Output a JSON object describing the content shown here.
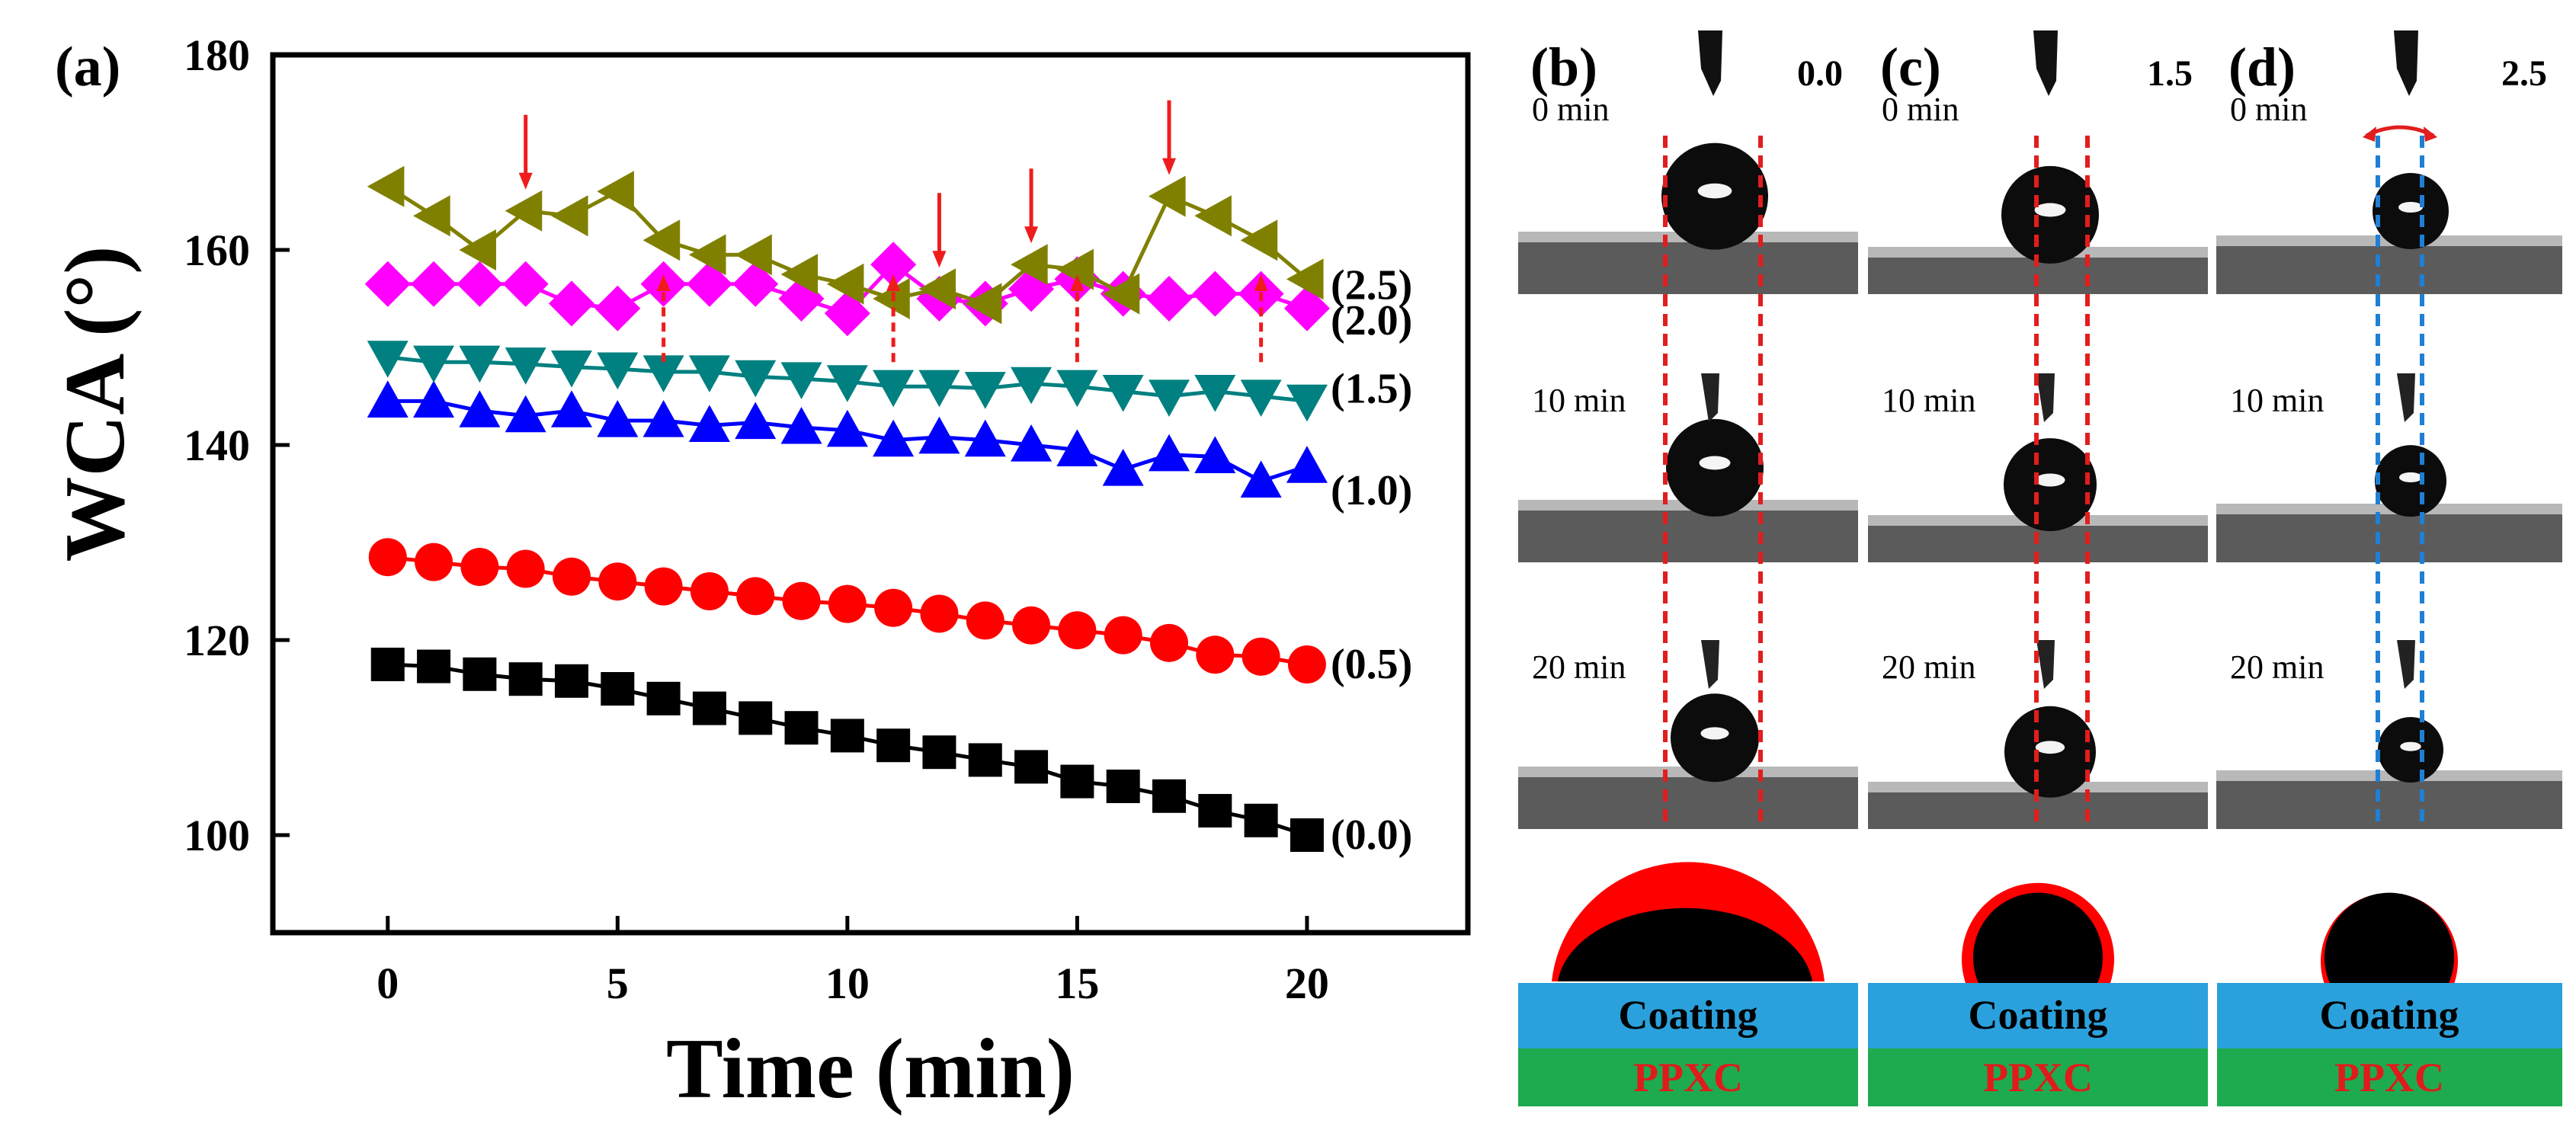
{
  "chart_data": {
    "type": "line",
    "panel_label": "(a)",
    "xlabel": "Time (min)",
    "ylabel": "WCA (°)",
    "xlim": [
      -2.5,
      23.5
    ],
    "ylim": [
      90,
      180
    ],
    "xticks": [
      0,
      5,
      10,
      15,
      20
    ],
    "yticks": [
      100,
      120,
      140,
      160,
      180
    ],
    "grid": false,
    "series": [
      {
        "name": "(0.0)",
        "marker": "square",
        "color": "#000000",
        "x": [
          0,
          1,
          2,
          3,
          4,
          5,
          6,
          7,
          8,
          9,
          10,
          11,
          12,
          13,
          14,
          15,
          16,
          17,
          18,
          19,
          20
        ],
        "y": [
          117.5,
          117.3,
          116.5,
          116.0,
          115.8,
          115.0,
          114.0,
          113.0,
          112.0,
          111.0,
          110.2,
          109.2,
          108.5,
          107.7,
          107.0,
          105.5,
          105.0,
          104.0,
          102.5,
          101.5,
          100.0
        ]
      },
      {
        "name": "(0.5)",
        "marker": "circle",
        "color": "#ff0000",
        "x": [
          0,
          1,
          2,
          3,
          4,
          5,
          6,
          7,
          8,
          9,
          10,
          11,
          12,
          13,
          14,
          15,
          16,
          17,
          18,
          19,
          20
        ],
        "y": [
          128.5,
          128.0,
          127.5,
          127.3,
          126.5,
          126.0,
          125.5,
          125.0,
          124.5,
          124.0,
          123.7,
          123.3,
          122.7,
          122.0,
          121.5,
          121.0,
          120.5,
          119.7,
          118.5,
          118.3,
          117.5
        ]
      },
      {
        "name": "(1.0)",
        "marker": "triangle-up",
        "color": "#0000ff",
        "x": [
          0,
          1,
          2,
          3,
          4,
          5,
          6,
          7,
          8,
          9,
          10,
          11,
          12,
          13,
          14,
          15,
          16,
          17,
          18,
          19,
          20
        ],
        "y": [
          144.5,
          144.5,
          143.5,
          143.0,
          143.5,
          142.5,
          142.5,
          142.0,
          142.3,
          141.8,
          141.5,
          140.5,
          140.8,
          140.5,
          140.0,
          139.5,
          137.5,
          139.0,
          138.8,
          136.3,
          137.8
        ]
      },
      {
        "name": "(1.5)",
        "marker": "triangle-down",
        "color": "#008080",
        "x": [
          0,
          1,
          2,
          3,
          4,
          5,
          6,
          7,
          8,
          9,
          10,
          11,
          12,
          13,
          14,
          15,
          16,
          17,
          18,
          19,
          20
        ],
        "y": [
          149.0,
          148.5,
          148.5,
          148.3,
          148.0,
          147.8,
          147.5,
          147.5,
          147.0,
          146.8,
          146.5,
          146.0,
          146.0,
          145.8,
          146.3,
          146.0,
          145.5,
          145.0,
          145.5,
          145.0,
          144.5
        ]
      },
      {
        "name": "(2.0)",
        "marker": "diamond",
        "color": "#ff00ff",
        "x": [
          0,
          1,
          2,
          3,
          4,
          5,
          6,
          7,
          8,
          9,
          10,
          11,
          12,
          13,
          14,
          15,
          16,
          17,
          18,
          19,
          20
        ],
        "y": [
          156.5,
          156.5,
          156.5,
          156.5,
          154.5,
          154.0,
          156.5,
          156.5,
          156.5,
          155.0,
          153.5,
          158.5,
          155.0,
          154.5,
          156.0,
          157.0,
          155.5,
          155.0,
          155.5,
          155.5,
          154.0
        ]
      },
      {
        "name": "(2.5)",
        "marker": "triangle-left",
        "color": "#808000",
        "x": [
          0,
          1,
          2,
          3,
          4,
          5,
          6,
          7,
          8,
          9,
          10,
          11,
          12,
          13,
          14,
          15,
          16,
          17,
          18,
          19,
          20
        ],
        "y": [
          166.5,
          163.5,
          160.0,
          164.0,
          163.5,
          166.0,
          161.0,
          159.5,
          159.5,
          157.5,
          156.5,
          155.0,
          156.0,
          154.5,
          158.5,
          158.0,
          155.5,
          165.5,
          163.5,
          161.0,
          157.0
        ]
      }
    ],
    "annotations": {
      "down_arrows_at_x": [
        3,
        12,
        14,
        17
      ],
      "up_arrows_at_x": [
        6,
        11,
        15,
        19
      ]
    }
  },
  "droplet_panels": [
    {
      "label": "(b)",
      "value": "0.0",
      "guide_color": "#e21d1d"
    },
    {
      "label": "(c)",
      "value": "1.5",
      "guide_color": "#e21d1d"
    },
    {
      "label": "(d)",
      "value": "2.5",
      "guide_color": "#1f7fd4"
    }
  ],
  "time_labels": [
    "0 min",
    "10 min",
    "20 min"
  ],
  "layer_labels": {
    "top": "Coating",
    "bottom": "PPXC"
  },
  "colors": {
    "coating": "#2aa1dc",
    "ppxc": "#1eab4f",
    "ppxc_text": "#e01b1b",
    "halo": "#ff0000"
  }
}
